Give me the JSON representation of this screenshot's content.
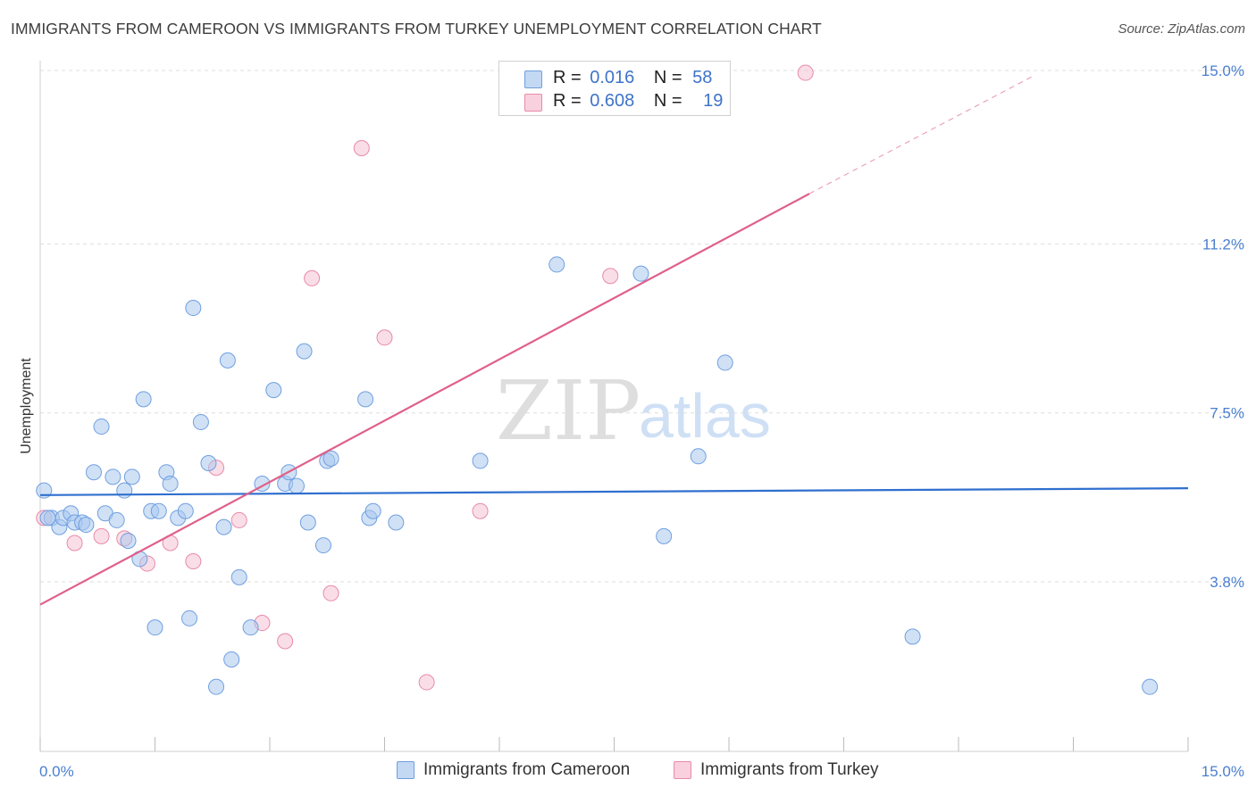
{
  "title": "IMMIGRANTS FROM CAMEROON VS IMMIGRANTS FROM TURKEY UNEMPLOYMENT CORRELATION CHART",
  "source": "Source: ZipAtlas.com",
  "watermark": {
    "zip": "ZIP",
    "atlas": "atlas"
  },
  "colors": {
    "blue_fill": "#a9c8ef",
    "blue_stroke": "#6f9fe0",
    "blue_line": "#2f6fcf",
    "pink_fill": "#f6c3d3",
    "pink_stroke": "#e88aa8",
    "pink_line": "#e0608a",
    "tick_text": "#4a7fd0",
    "grid": "#dddddd"
  },
  "legend": {
    "rows": [
      {
        "r_label": "R =",
        "r_value": "0.016",
        "n_label": "N =",
        "n_value": "58"
      },
      {
        "r_label": "R =",
        "r_value": "0.608",
        "n_label": "N =",
        "n_value": "19"
      }
    ]
  },
  "bottom_legend": [
    "Immigrants from Cameroon",
    "Immigrants from Turkey"
  ],
  "chart_data": {
    "type": "scatter",
    "title": "IMMIGRANTS FROM CAMEROON VS IMMIGRANTS FROM TURKEY UNEMPLOYMENT CORRELATION CHART",
    "xlabel": "",
    "ylabel": "Unemployment",
    "xlim": [
      0,
      15
    ],
    "ylim": [
      0,
      15.4
    ],
    "x_tick_labels": [
      "0.0%",
      "15.0%"
    ],
    "y_ticks": [
      3.8,
      7.5,
      11.2,
      15.0
    ],
    "y_tick_labels": [
      "3.8%",
      "7.5%",
      "11.2%",
      "15.0%"
    ],
    "series": [
      {
        "name": "Immigrants from Cameroon",
        "color": "blue",
        "trend": {
          "x": [
            0,
            15
          ],
          "y": [
            5.7,
            5.85
          ]
        },
        "points": [
          [
            0.05,
            5.8
          ],
          [
            0.15,
            5.2
          ],
          [
            0.25,
            5.0
          ],
          [
            0.3,
            5.2
          ],
          [
            0.4,
            5.3
          ],
          [
            0.45,
            5.1
          ],
          [
            0.55,
            5.1
          ],
          [
            0.6,
            5.05
          ],
          [
            0.7,
            6.2
          ],
          [
            0.8,
            7.2
          ],
          [
            0.85,
            5.3
          ],
          [
            0.95,
            6.1
          ],
          [
            1.0,
            5.15
          ],
          [
            1.1,
            5.8
          ],
          [
            1.15,
            4.7
          ],
          [
            1.2,
            6.1
          ],
          [
            1.3,
            4.3
          ],
          [
            1.35,
            7.8
          ],
          [
            1.45,
            5.35
          ],
          [
            1.5,
            2.8
          ],
          [
            1.55,
            5.35
          ],
          [
            1.65,
            6.2
          ],
          [
            1.7,
            5.95
          ],
          [
            1.8,
            5.2
          ],
          [
            1.9,
            5.35
          ],
          [
            1.95,
            3.0
          ],
          [
            2.0,
            9.8
          ],
          [
            2.1,
            7.3
          ],
          [
            2.2,
            6.4
          ],
          [
            2.3,
            1.5
          ],
          [
            2.4,
            5.0
          ],
          [
            2.45,
            8.65
          ],
          [
            2.5,
            2.1
          ],
          [
            2.6,
            3.9
          ],
          [
            2.75,
            2.8
          ],
          [
            2.9,
            5.95
          ],
          [
            3.05,
            8.0
          ],
          [
            3.2,
            5.95
          ],
          [
            3.25,
            6.2
          ],
          [
            3.35,
            5.9
          ],
          [
            3.45,
            8.85
          ],
          [
            3.5,
            5.1
          ],
          [
            3.7,
            4.6
          ],
          [
            3.75,
            6.45
          ],
          [
            3.8,
            6.5
          ],
          [
            4.25,
            7.8
          ],
          [
            4.3,
            5.2
          ],
          [
            4.35,
            5.35
          ],
          [
            4.65,
            5.1
          ],
          [
            5.75,
            6.45
          ],
          [
            6.75,
            10.75
          ],
          [
            7.85,
            10.55
          ],
          [
            8.15,
            4.8
          ],
          [
            8.6,
            6.55
          ],
          [
            8.95,
            8.6
          ],
          [
            11.4,
            2.6
          ],
          [
            14.5,
            1.5
          ],
          [
            0.1,
            5.2
          ]
        ]
      },
      {
        "name": "Immigrants from Turkey",
        "color": "pink",
        "trend": {
          "x": [
            0,
            10.05
          ],
          "y": [
            3.3,
            12.3
          ],
          "dash_to": {
            "x": 13.0,
            "y": 14.9
          }
        },
        "points": [
          [
            0.05,
            5.2
          ],
          [
            0.45,
            4.65
          ],
          [
            0.8,
            4.8
          ],
          [
            1.1,
            4.75
          ],
          [
            1.4,
            4.2
          ],
          [
            1.7,
            4.65
          ],
          [
            2.0,
            4.25
          ],
          [
            2.3,
            6.3
          ],
          [
            2.6,
            5.15
          ],
          [
            2.9,
            2.9
          ],
          [
            3.2,
            2.5
          ],
          [
            3.55,
            10.45
          ],
          [
            3.8,
            3.55
          ],
          [
            4.2,
            13.3
          ],
          [
            4.5,
            9.15
          ],
          [
            5.05,
            1.6
          ],
          [
            5.75,
            5.35
          ],
          [
            7.45,
            10.5
          ],
          [
            10.0,
            14.95
          ]
        ]
      }
    ]
  }
}
